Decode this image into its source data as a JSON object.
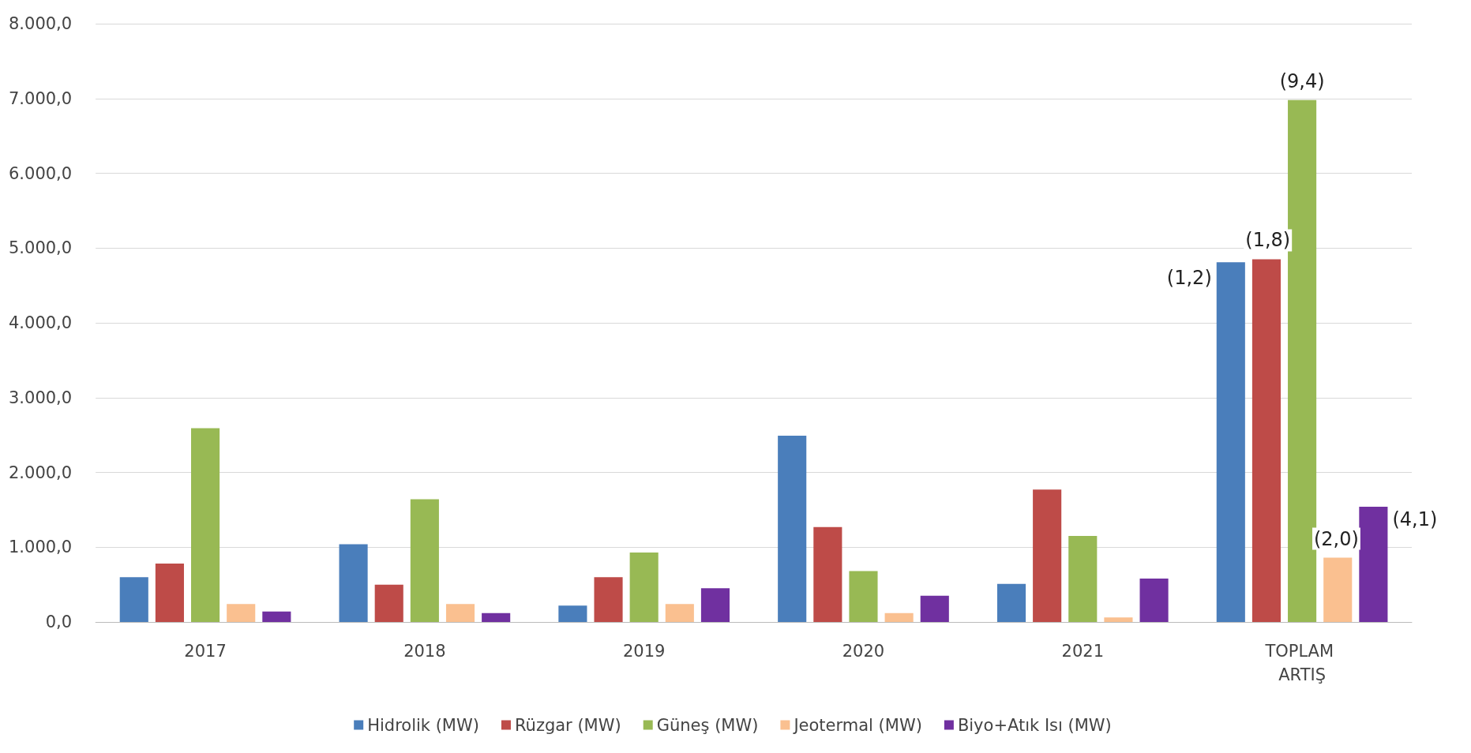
{
  "chart_data": {
    "type": "bar",
    "categories": [
      "2017",
      "2018",
      "2019",
      "2020",
      "2021",
      "TOPLAM ARTIŞ"
    ],
    "series": [
      {
        "name": "Hidrolik (MW)",
        "color": "#4a7ebb",
        "values": [
          600,
          1040,
          220,
          2490,
          510,
          4810
        ]
      },
      {
        "name": "Rüzgar (MW)",
        "color": "#be4b48",
        "values": [
          780,
          500,
          600,
          1270,
          1770,
          4850
        ]
      },
      {
        "name": "Güneş (MW)",
        "color": "#98b954",
        "values": [
          2590,
          1640,
          930,
          680,
          1150,
          6980
        ]
      },
      {
        "name": "Jeotermal (MW)",
        "color": "#fac090",
        "values": [
          240,
          240,
          240,
          120,
          60,
          860
        ]
      },
      {
        "name": "Biyo+Atık Isı (MW)",
        "color": "#7030a0",
        "values": [
          140,
          120,
          450,
          350,
          580,
          1540
        ]
      }
    ],
    "ylim": [
      0,
      8000
    ],
    "yticks": [
      {
        "value": 0,
        "label": "0,0"
      },
      {
        "value": 1000,
        "label": "1.000,0"
      },
      {
        "value": 2000,
        "label": "2.000,0"
      },
      {
        "value": 3000,
        "label": "3.000,0"
      },
      {
        "value": 4000,
        "label": "4.000,0"
      },
      {
        "value": 5000,
        "label": "5.000,0"
      },
      {
        "value": 6000,
        "label": "6.000,0"
      },
      {
        "value": 7000,
        "label": "7.000,0"
      },
      {
        "value": 8000,
        "label": "8.000,0"
      }
    ],
    "grid": "y",
    "legend": "bottom",
    "annotations": [
      "(1,2)",
      "(1,8)",
      "(9,4)",
      "(2,0)",
      "(4,1)"
    ]
  }
}
